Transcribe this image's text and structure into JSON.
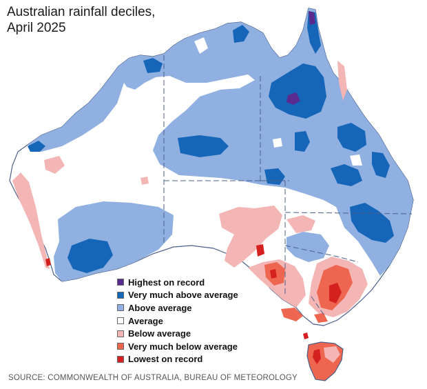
{
  "title": "Australian rainfall deciles,\nApril 2025",
  "source": "SOURCE: COMMONWEALTH OF AUSTRALIA, BUREAU OF METEOROLOGY",
  "colors": {
    "highest": "#5b2a8e",
    "very_much_above": "#1565b8",
    "above": "#8fb0e0",
    "average": "#ffffff",
    "below": "#f4b5b5",
    "very_much_below": "#ee6650",
    "lowest": "#d4201f",
    "border": "#4a5f8a"
  },
  "legend": [
    {
      "label": "Highest on record",
      "color": "#5b2a8e"
    },
    {
      "label": "Very much above average",
      "color": "#1565b8"
    },
    {
      "label": "Above average",
      "color": "#8fb0e0"
    },
    {
      "label": "Average",
      "color": "#ffffff"
    },
    {
      "label": "Below average",
      "color": "#f4b5b5"
    },
    {
      "label": "Very much below average",
      "color": "#ee6650"
    },
    {
      "label": "Lowest on record",
      "color": "#d4201f"
    }
  ]
}
